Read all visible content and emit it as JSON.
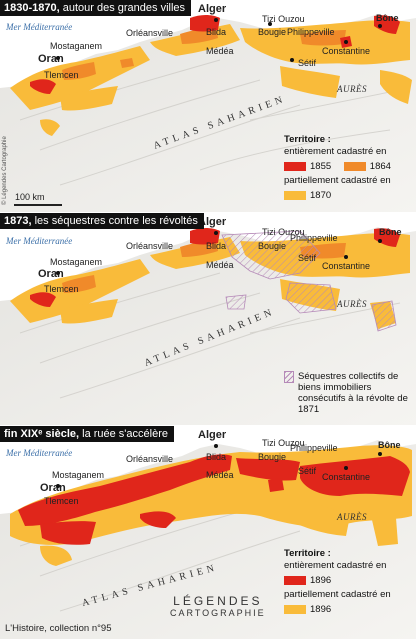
{
  "panels": [
    {
      "title_bold": "1830-1870,",
      "title_rest": " autour des grandes villes"
    },
    {
      "title_bold": "1873,",
      "title_rest": " les séquestres contre les révoltés"
    },
    {
      "title_bold": "fin XIXᵉ siècle,",
      "title_rest": " la ruée s'accélère"
    }
  ],
  "map_labels": {
    "sea": "Mer Méditerranée",
    "alger": "Alger",
    "tizi_ouzou": "Tizi Ouzou",
    "bone": "Bône",
    "orleansville": "Orléansville",
    "blida": "Blida",
    "bougie": "Bougie",
    "philippeville": "Philippeville",
    "mostaganem": "Mostaganem",
    "medea": "Médéa",
    "constantine": "Constantine",
    "oran": "Oran",
    "setif": "Sétif",
    "tlemcen": "Tlemcen",
    "aures": "AURÈS",
    "atlas": "ATLAS SAHARIEN"
  },
  "scale": "100 km",
  "credit_vertical": "© Légendes Cartographie",
  "legend1": {
    "head": "Territoire :",
    "line1": "entièrement cadastré en",
    "y1": "1855",
    "y2": "1864",
    "line2": "partiellement cadastré en",
    "y3": "1870"
  },
  "legend2": {
    "text": "Séquestres collectifs de biens immobiliers consécutifs à la révolte de 1871"
  },
  "legend3": {
    "head": "Territoire :",
    "line1": "entièrement cadastré en",
    "y1": "1896",
    "line2": "partiellement cadastré en",
    "y2": "1896"
  },
  "footer": "L'Histoire, collection n°95",
  "logo": {
    "line1": "LÉGENDES",
    "line2": "CARTOGRAPHIE"
  },
  "colors": {
    "red": "#e0261b",
    "orange": "#f08a2a",
    "yellow": "#f9bb3a",
    "land": "#f2f1ee",
    "sea": "#ffffff",
    "hatch": "#b58ab8"
  }
}
